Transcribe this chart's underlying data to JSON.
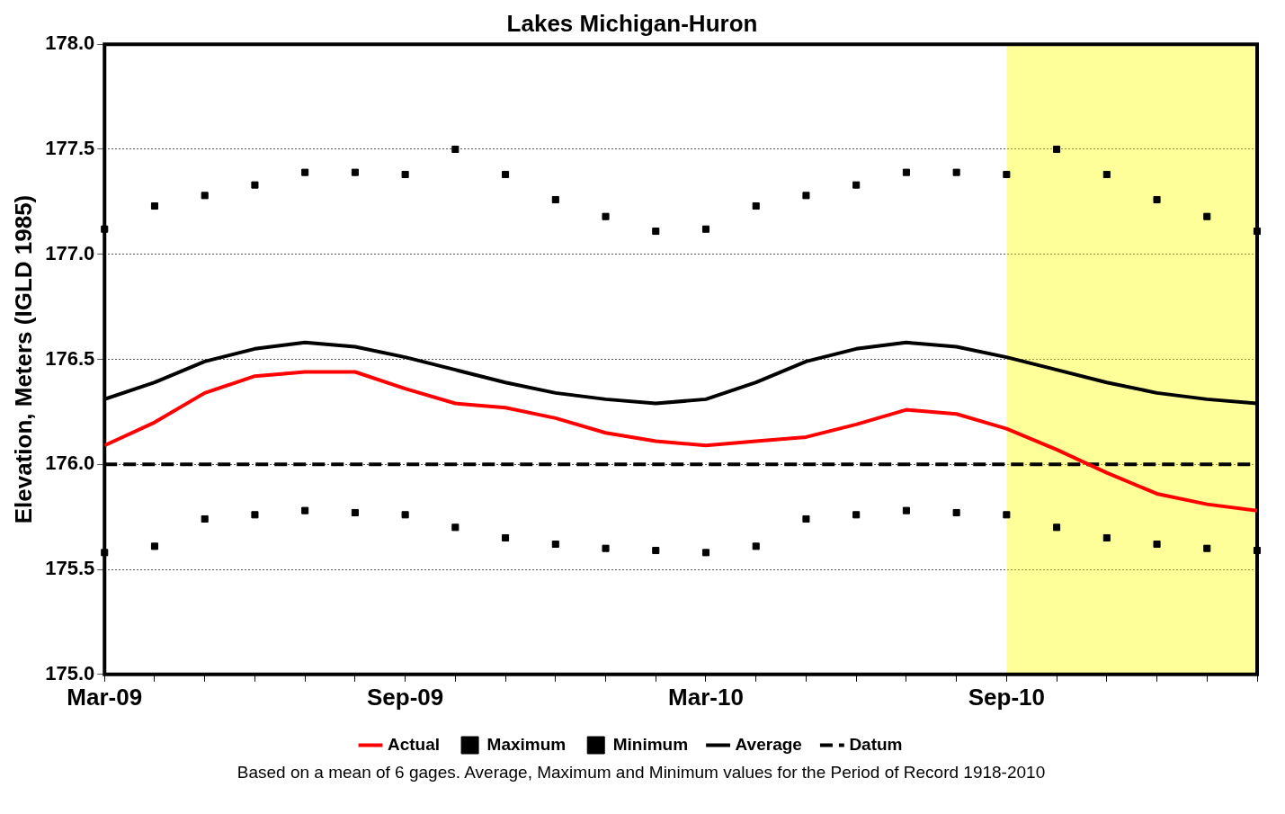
{
  "chart_data": {
    "type": "line",
    "title": "Lakes Michigan-Huron",
    "ylabel": "Elevation, Meters (IGLD 1985)",
    "x": [
      "2009-03",
      "2009-04",
      "2009-05",
      "2009-06",
      "2009-07",
      "2009-08",
      "2009-09",
      "2009-10",
      "2009-11",
      "2009-12",
      "2010-01",
      "2010-02",
      "2010-03",
      "2010-04",
      "2010-05",
      "2010-06",
      "2010-07",
      "2010-08",
      "2010-09",
      "2010-10",
      "2010-11",
      "2010-12",
      "2011-01",
      "2011-02"
    ],
    "xlim": [
      "2009-03",
      "2011-02"
    ],
    "xticks": [
      {
        "value": "2009-03",
        "label": "Mar-09"
      },
      {
        "value": "2009-04",
        "label": null
      },
      {
        "value": "2009-05",
        "label": null
      },
      {
        "value": "2009-06",
        "label": null
      },
      {
        "value": "2009-07",
        "label": null
      },
      {
        "value": "2009-08",
        "label": null
      },
      {
        "value": "2009-09",
        "label": "Sep-09"
      },
      {
        "value": "2009-10",
        "label": null
      },
      {
        "value": "2009-11",
        "label": null
      },
      {
        "value": "2009-12",
        "label": null
      },
      {
        "value": "2010-01",
        "label": null
      },
      {
        "value": "2010-02",
        "label": null
      },
      {
        "value": "2010-03",
        "label": "Mar-10"
      },
      {
        "value": "2010-04",
        "label": null
      },
      {
        "value": "2010-05",
        "label": null
      },
      {
        "value": "2010-06",
        "label": null
      },
      {
        "value": "2010-07",
        "label": null
      },
      {
        "value": "2010-08",
        "label": null
      },
      {
        "value": "2010-09",
        "label": "Sep-10"
      },
      {
        "value": "2010-10",
        "label": null
      },
      {
        "value": "2010-11",
        "label": null
      },
      {
        "value": "2010-12",
        "label": null
      },
      {
        "value": "2011-01",
        "label": null
      },
      {
        "value": "2011-02",
        "label": null
      }
    ],
    "ylim": [
      175.0,
      178.0
    ],
    "yticks": [
      {
        "value": 175,
        "label": "175.0"
      },
      {
        "value": 175.5,
        "label": "175.5"
      },
      {
        "value": 176,
        "label": "176.0"
      },
      {
        "value": 176.5,
        "label": "176.5"
      },
      {
        "value": 177,
        "label": "177.0"
      },
      {
        "value": 177.5,
        "label": "177.5"
      },
      {
        "value": 178,
        "label": "178.0"
      }
    ],
    "grid": "y",
    "legend": "bottom",
    "series": [
      {
        "name": "Actual",
        "color": "#ff0000",
        "line_style": "solid",
        "marker": "none",
        "values": [
          176.09,
          176.2,
          176.34,
          176.42,
          176.44,
          176.44,
          176.36,
          176.29,
          176.27,
          176.22,
          176.15,
          176.11,
          176.09,
          176.11,
          176.13,
          176.19,
          176.26,
          176.24,
          176.17,
          176.07,
          175.96,
          175.86,
          175.81,
          175.78
        ]
      },
      {
        "name": "Maximum",
        "type": "scatter",
        "color": "#000000",
        "marker": "square",
        "values": [
          177.12,
          177.23,
          177.28,
          177.33,
          177.39,
          177.39,
          177.38,
          177.5,
          177.38,
          177.26,
          177.18,
          177.11,
          177.12,
          177.23,
          177.28,
          177.33,
          177.39,
          177.39,
          177.38,
          177.5,
          177.38,
          177.26,
          177.18,
          177.11
        ]
      },
      {
        "name": "Minimum",
        "type": "scatter",
        "color": "#000000",
        "marker": "square",
        "values": [
          175.58,
          175.61,
          175.74,
          175.76,
          175.78,
          175.77,
          175.76,
          175.7,
          175.65,
          175.62,
          175.6,
          175.59,
          175.58,
          175.61,
          175.74,
          175.76,
          175.78,
          175.77,
          175.76,
          175.7,
          175.65,
          175.62,
          175.6,
          175.59
        ]
      },
      {
        "name": "Average",
        "color": "#000000",
        "line_style": "solid",
        "marker": "none",
        "values": [
          176.31,
          176.39,
          176.49,
          176.55,
          176.58,
          176.56,
          176.51,
          176.45,
          176.39,
          176.34,
          176.31,
          176.29,
          176.31,
          176.39,
          176.49,
          176.55,
          176.58,
          176.56,
          176.51,
          176.45,
          176.39,
          176.34,
          176.31,
          176.29
        ]
      },
      {
        "name": "Datum",
        "color": "#000000",
        "line_style": "dashed",
        "marker": "none",
        "values": [
          176,
          176,
          176,
          176,
          176,
          176,
          176,
          176,
          176,
          176,
          176,
          176,
          176,
          176,
          176,
          176,
          176,
          176,
          176,
          176,
          176,
          176,
          176,
          176
        ]
      }
    ],
    "bands": [
      {
        "axis": "x",
        "from": "2010-09",
        "to": "2011-02",
        "color": "#ffff00"
      }
    ],
    "annotations": [
      "Based on a mean of 6 gages.  Average, Maximum and Minimum values for the Period of Record 1918-2010"
    ]
  }
}
